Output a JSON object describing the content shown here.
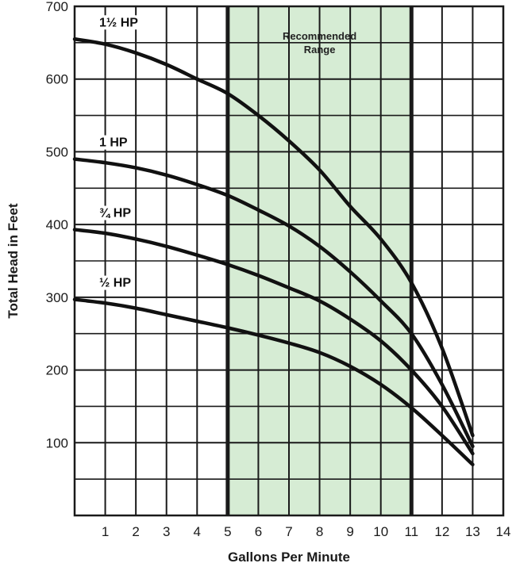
{
  "chart_data": {
    "type": "line",
    "xlabel": "Gallons Per Minute",
    "ylabel": "Total Head in Feet",
    "xlim": [
      0,
      14
    ],
    "ylim": [
      0,
      700
    ],
    "x_ticks": [
      1,
      2,
      3,
      4,
      5,
      6,
      7,
      8,
      9,
      10,
      11,
      12,
      13,
      14
    ],
    "y_ticks": [
      100,
      200,
      300,
      400,
      500,
      600,
      700
    ],
    "grid": true,
    "recommended_range": {
      "label_line1": "Recommended",
      "label_line2": "Range",
      "x": [
        5,
        11
      ],
      "color": "#d6ecd4"
    },
    "series": [
      {
        "name": "1½ HP",
        "x": [
          0,
          1,
          2,
          3,
          4,
          5,
          6,
          7,
          8,
          9,
          10,
          11,
          12,
          13
        ],
        "values": [
          655,
          648,
          636,
          620,
          600,
          580,
          550,
          515,
          475,
          425,
          380,
          320,
          230,
          110
        ]
      },
      {
        "name": "1 HP",
        "x": [
          0,
          1,
          2,
          3,
          4,
          5,
          6,
          7,
          8,
          9,
          10,
          11,
          12,
          13
        ],
        "values": [
          490,
          485,
          478,
          468,
          455,
          440,
          420,
          398,
          370,
          335,
          295,
          250,
          180,
          95
        ]
      },
      {
        "name": "¾ HP",
        "x": [
          0,
          1,
          2,
          3,
          4,
          5,
          6,
          7,
          8,
          9,
          10,
          11,
          12,
          13
        ],
        "values": [
          393,
          388,
          380,
          370,
          358,
          345,
          330,
          313,
          295,
          270,
          240,
          200,
          150,
          85
        ]
      },
      {
        "name": "½ HP",
        "x": [
          0,
          1,
          2,
          3,
          4,
          5,
          6,
          7,
          8,
          9,
          10,
          11,
          12,
          13
        ],
        "values": [
          297,
          292,
          285,
          276,
          267,
          258,
          248,
          237,
          224,
          205,
          180,
          148,
          110,
          70
        ]
      }
    ],
    "colors": {
      "line": "#111111",
      "grid": "#1a1a1a",
      "band": "#d6ecd4"
    }
  }
}
